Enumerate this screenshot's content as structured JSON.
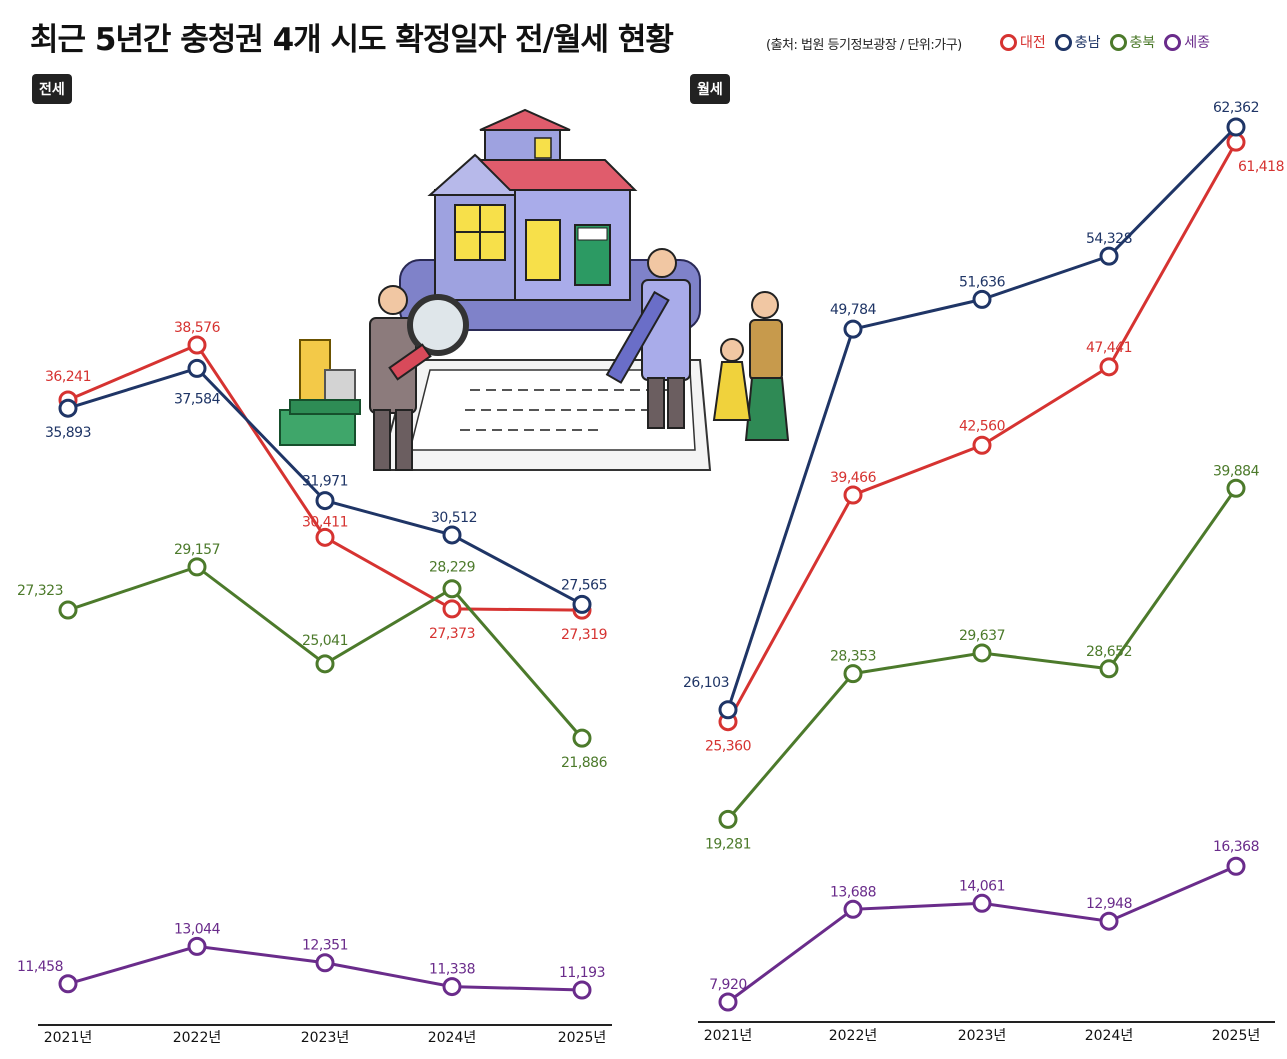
{
  "title": "최근 5년간 충청권 4개 시도 확정일자 전/월세 현황",
  "source": "(출처: 법원 등기정보광장 / 단위:가구)",
  "colors": {
    "대전": "#d63331",
    "충남": "#1f3566",
    "충북": "#4c7a2b",
    "세종": "#6a2c8b"
  },
  "legend": [
    {
      "name": "대전",
      "color": "#d63331"
    },
    {
      "name": "충남",
      "color": "#1f3566"
    },
    {
      "name": "충북",
      "color": "#4c7a2b"
    },
    {
      "name": "세종",
      "color": "#6a2c8b"
    }
  ],
  "chart_data": [
    {
      "type": "line",
      "title": "전세",
      "categories": [
        "2021년",
        "2022년",
        "2023년",
        "2024년",
        "2025년"
      ],
      "series": [
        {
          "name": "대전",
          "values": [
            36241,
            38576,
            30411,
            27373,
            27319
          ],
          "value_labels": [
            "36,241",
            "38,576",
            "30,411",
            "27,373",
            "27,319"
          ]
        },
        {
          "name": "충남",
          "values": [
            35893,
            37584,
            31971,
            30512,
            27565
          ],
          "value_labels": [
            "35,893",
            "37,584",
            "31,971",
            "30,512",
            "27,565"
          ]
        },
        {
          "name": "충북",
          "values": [
            27323,
            29157,
            25041,
            28229,
            21886
          ],
          "value_labels": [
            "27,323",
            "29,157",
            "25,041",
            "28,229",
            "21,886"
          ]
        },
        {
          "name": "세종",
          "values": [
            11458,
            13044,
            12351,
            11338,
            11193
          ],
          "value_labels": [
            "11,458",
            "13,044",
            "12,351",
            "11,338",
            "11,193"
          ]
        }
      ]
    },
    {
      "type": "line",
      "title": "월세",
      "categories": [
        "2021년",
        "2022년",
        "2023년",
        "2024년",
        "2025년"
      ],
      "series": [
        {
          "name": "대전",
          "values": [
            25360,
            39466,
            42560,
            47441,
            61418
          ],
          "value_labels": [
            "25,360",
            "39,466",
            "42,560",
            "47,441",
            "61,418"
          ]
        },
        {
          "name": "충남",
          "values": [
            26103,
            49784,
            51636,
            54328,
            62362
          ],
          "value_labels": [
            "26,103",
            "49,784",
            "51,636",
            "54,328",
            "62,362"
          ]
        },
        {
          "name": "충북",
          "values": [
            19281,
            28353,
            29637,
            28652,
            39884
          ],
          "value_labels": [
            "19,281",
            "28,353",
            "29,637",
            "28,652",
            "39,884"
          ]
        },
        {
          "name": "세종",
          "values": [
            7920,
            13688,
            14061,
            12948,
            16368
          ],
          "value_labels": [
            "7,920",
            "13,688",
            "14,061",
            "12,948",
            "16,368"
          ]
        }
      ]
    }
  ]
}
